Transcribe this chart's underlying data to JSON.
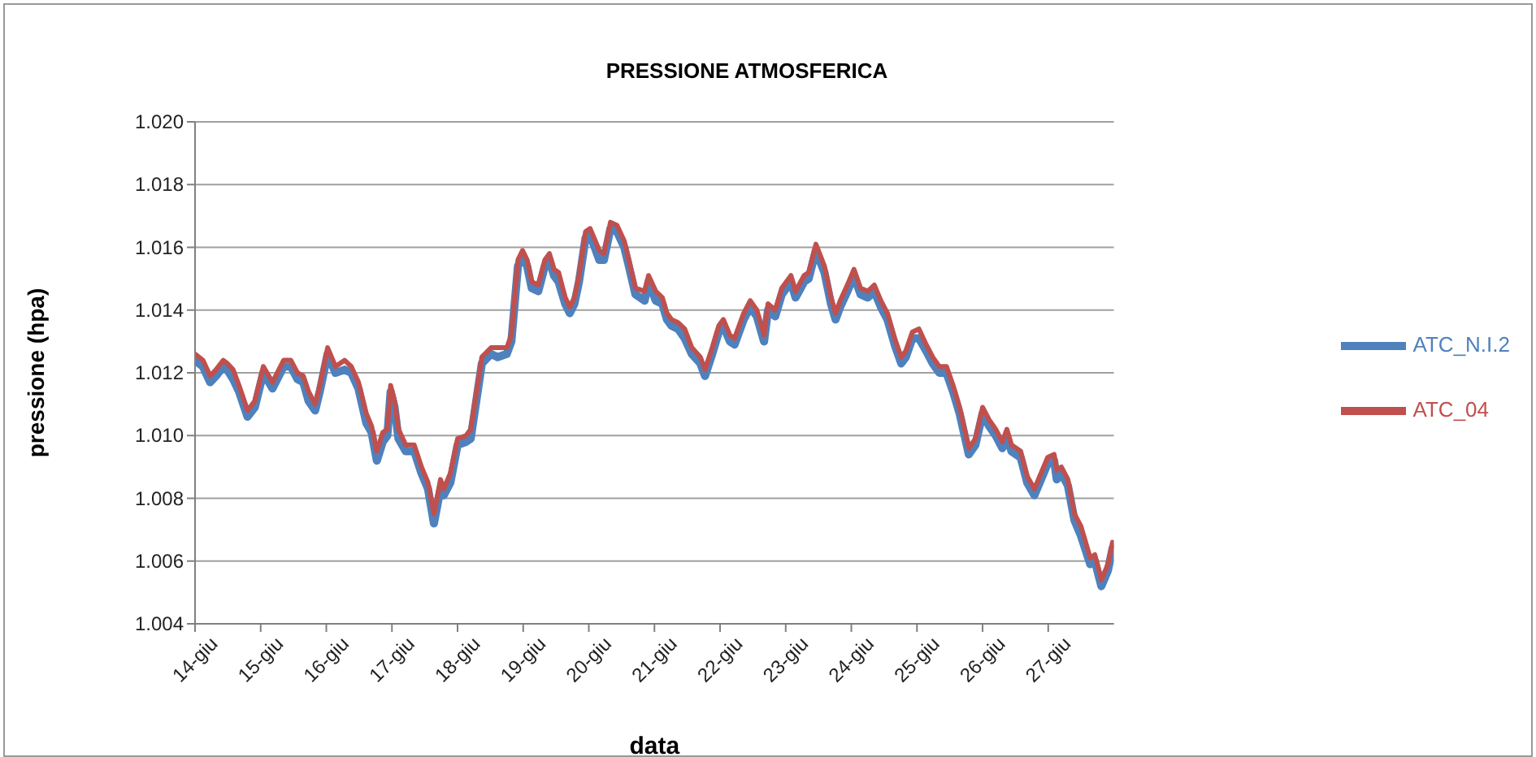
{
  "chart_data": {
    "type": "line",
    "title": "PRESSIONE ATMOSFERICA",
    "xlabel": "data",
    "ylabel": "pressione (hpa)",
    "x": [
      14.0,
      14.12,
      14.23,
      14.32,
      14.43,
      14.49,
      14.58,
      14.67,
      14.8,
      14.91,
      15.04,
      15.18,
      15.35,
      15.46,
      15.56,
      15.65,
      15.73,
      15.83,
      15.9,
      16.02,
      16.14,
      16.28,
      16.38,
      16.49,
      16.61,
      16.69,
      16.77,
      16.86,
      16.93,
      16.98,
      17.04,
      17.1,
      17.21,
      17.34,
      17.45,
      17.55,
      17.64,
      17.74,
      17.79,
      17.89,
      18.0,
      18.13,
      18.2,
      18.37,
      18.51,
      18.61,
      18.75,
      18.82,
      18.92,
      18.99,
      19.06,
      19.13,
      19.23,
      19.33,
      19.4,
      19.47,
      19.54,
      19.64,
      19.71,
      19.78,
      19.85,
      19.95,
      20.02,
      20.16,
      20.23,
      20.33,
      20.43,
      20.54,
      20.61,
      20.71,
      20.85,
      20.91,
      21.02,
      21.12,
      21.19,
      21.26,
      21.36,
      21.46,
      21.57,
      21.7,
      21.77,
      21.88,
      21.98,
      22.05,
      22.15,
      22.22,
      22.36,
      22.46,
      22.56,
      22.67,
      22.73,
      22.84,
      22.94,
      23.08,
      23.15,
      23.28,
      23.35,
      23.46,
      23.59,
      23.69,
      23.76,
      23.83,
      23.94,
      24.04,
      24.14,
      24.25,
      24.35,
      24.45,
      24.55,
      24.66,
      24.76,
      24.83,
      24.93,
      25.03,
      25.14,
      25.24,
      25.34,
      25.45,
      25.55,
      25.65,
      25.79,
      25.89,
      26.0,
      26.1,
      26.2,
      26.3,
      26.37,
      26.44,
      26.58,
      26.68,
      26.79,
      26.89,
      26.99,
      27.09,
      27.13,
      27.2,
      27.3,
      27.4,
      27.5,
      27.64,
      27.71,
      27.81,
      27.91,
      27.98
    ],
    "series": [
      {
        "name": "ATC_N.I.2",
        "color": "#4f81bd",
        "values": [
          1012.4,
          1012.2,
          1011.7,
          1011.9,
          1012.2,
          1012.1,
          1011.8,
          1011.4,
          1010.6,
          1010.9,
          1012.0,
          1011.5,
          1012.2,
          1012.2,
          1011.8,
          1011.7,
          1011.1,
          1010.8,
          1011.4,
          1012.6,
          1012.0,
          1012.1,
          1012.0,
          1011.5,
          1010.4,
          1010.1,
          1009.2,
          1009.8,
          1010.0,
          1011.4,
          1010.9,
          1009.9,
          1009.5,
          1009.5,
          1008.8,
          1008.3,
          1007.2,
          1008.3,
          1008.1,
          1008.5,
          1009.7,
          1009.8,
          1009.9,
          1012.3,
          1012.6,
          1012.5,
          1012.6,
          1013.0,
          1015.4,
          1015.7,
          1015.4,
          1014.7,
          1014.6,
          1015.4,
          1015.6,
          1015.1,
          1014.9,
          1014.2,
          1013.9,
          1014.2,
          1014.9,
          1016.3,
          1016.4,
          1015.6,
          1015.6,
          1016.6,
          1016.5,
          1016.0,
          1015.4,
          1014.5,
          1014.3,
          1014.9,
          1014.3,
          1014.2,
          1013.7,
          1013.5,
          1013.4,
          1013.1,
          1012.6,
          1012.3,
          1011.9,
          1012.6,
          1013.3,
          1013.5,
          1013.0,
          1012.9,
          1013.7,
          1014.1,
          1013.8,
          1013.0,
          1014.0,
          1013.8,
          1014.5,
          1014.9,
          1014.4,
          1014.9,
          1015.0,
          1015.9,
          1015.2,
          1014.2,
          1013.7,
          1014.1,
          1014.6,
          1015.1,
          1014.5,
          1014.4,
          1014.6,
          1014.1,
          1013.7,
          1012.9,
          1012.3,
          1012.5,
          1013.1,
          1013.1,
          1012.7,
          1012.3,
          1012.0,
          1012.0,
          1011.4,
          1010.7,
          1009.4,
          1009.7,
          1010.7,
          1010.3,
          1010.0,
          1009.6,
          1010.0,
          1009.5,
          1009.3,
          1008.5,
          1008.1,
          1008.6,
          1009.1,
          1009.2,
          1008.6,
          1008.8,
          1008.4,
          1007.3,
          1006.8,
          1005.9,
          1006.0,
          1005.2,
          1005.7,
          1006.4
        ]
      },
      {
        "name": "ATC_04",
        "color": "#c0504d",
        "values": [
          1012.6,
          1012.4,
          1011.9,
          1012.1,
          1012.4,
          1012.3,
          1012.1,
          1011.6,
          1010.8,
          1011.1,
          1012.2,
          1011.7,
          1012.4,
          1012.4,
          1012.0,
          1011.9,
          1011.4,
          1011.0,
          1011.6,
          1012.8,
          1012.2,
          1012.4,
          1012.2,
          1011.7,
          1010.7,
          1010.3,
          1009.5,
          1010.1,
          1010.2,
          1011.6,
          1011.1,
          1010.2,
          1009.7,
          1009.7,
          1009.0,
          1008.5,
          1007.5,
          1008.6,
          1008.3,
          1008.8,
          1009.9,
          1010.0,
          1010.2,
          1012.5,
          1012.8,
          1012.8,
          1012.8,
          1013.2,
          1015.6,
          1015.9,
          1015.6,
          1014.9,
          1014.8,
          1015.6,
          1015.8,
          1015.3,
          1015.2,
          1014.4,
          1014.1,
          1014.4,
          1015.1,
          1016.5,
          1016.6,
          1015.9,
          1015.8,
          1016.8,
          1016.7,
          1016.2,
          1015.6,
          1014.7,
          1014.6,
          1015.1,
          1014.6,
          1014.4,
          1013.9,
          1013.7,
          1013.6,
          1013.4,
          1012.8,
          1012.5,
          1012.1,
          1012.8,
          1013.5,
          1013.7,
          1013.2,
          1013.1,
          1013.9,
          1014.3,
          1014.0,
          1013.2,
          1014.2,
          1014.0,
          1014.7,
          1015.1,
          1014.6,
          1015.1,
          1015.2,
          1016.1,
          1015.4,
          1014.4,
          1013.9,
          1014.3,
          1014.8,
          1015.3,
          1014.7,
          1014.6,
          1014.8,
          1014.3,
          1013.9,
          1013.1,
          1012.5,
          1012.7,
          1013.3,
          1013.4,
          1012.9,
          1012.5,
          1012.2,
          1012.2,
          1011.6,
          1010.9,
          1009.6,
          1009.9,
          1010.9,
          1010.5,
          1010.2,
          1009.8,
          1010.2,
          1009.7,
          1009.5,
          1008.7,
          1008.3,
          1008.8,
          1009.3,
          1009.4,
          1008.9,
          1009.0,
          1008.6,
          1007.5,
          1007.1,
          1006.1,
          1006.2,
          1005.4,
          1005.9,
          1006.6
        ]
      }
    ],
    "xlim": [
      14,
      28
    ],
    "xticks": [
      {
        "value": 14,
        "label": "14-giu"
      },
      {
        "value": 15,
        "label": "15-giu"
      },
      {
        "value": 16,
        "label": "16-giu"
      },
      {
        "value": 17,
        "label": "17-giu"
      },
      {
        "value": 18,
        "label": "18-giu"
      },
      {
        "value": 19,
        "label": "19-giu"
      },
      {
        "value": 20,
        "label": "20-giu"
      },
      {
        "value": 21,
        "label": "21-giu"
      },
      {
        "value": 22,
        "label": "22-giu"
      },
      {
        "value": 23,
        "label": "23-giu"
      },
      {
        "value": 24,
        "label": "24-giu"
      },
      {
        "value": 25,
        "label": "25-giu"
      },
      {
        "value": 26,
        "label": "26-giu"
      },
      {
        "value": 27,
        "label": "27-giu"
      }
    ],
    "ylim": [
      1004,
      1020
    ],
    "yticks": [
      {
        "value": 1004,
        "label": "1.004"
      },
      {
        "value": 1006,
        "label": "1.006"
      },
      {
        "value": 1008,
        "label": "1.008"
      },
      {
        "value": 1010,
        "label": "1.010"
      },
      {
        "value": 1012,
        "label": "1.012"
      },
      {
        "value": 1014,
        "label": "1.014"
      },
      {
        "value": 1016,
        "label": "1.016"
      },
      {
        "value": 1018,
        "label": "1.018"
      },
      {
        "value": 1020,
        "label": "1.020"
      }
    ],
    "grid": "y",
    "legend": "right",
    "marker": "none",
    "line_style": "solid"
  }
}
